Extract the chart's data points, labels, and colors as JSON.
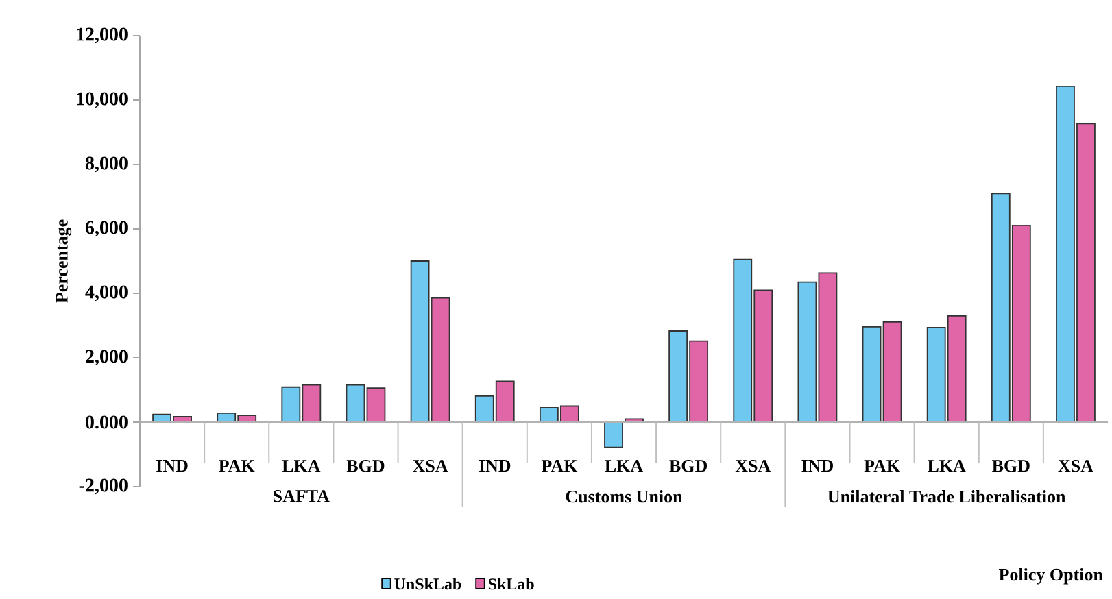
{
  "chart_data": {
    "type": "bar",
    "categories": [
      "IND",
      "PAK",
      "LKA",
      "BGD",
      "XSA",
      "IND",
      "PAK",
      "LKA",
      "BGD",
      "XSA",
      "IND",
      "PAK",
      "LKA",
      "BGD",
      "XSA"
    ],
    "series": [
      {
        "name": "UnSkLab",
        "color": "#6ec8ef",
        "values": [
          240,
          280,
          1090,
          1160,
          5000,
          810,
          450,
          -780,
          2830,
          5050,
          4350,
          2960,
          2940,
          7100,
          10430
        ]
      },
      {
        "name": "SkLab",
        "color": "#e066a8",
        "values": [
          170,
          210,
          1160,
          1060,
          3860,
          1270,
          500,
          100,
          2520,
          4100,
          4630,
          3110,
          3300,
          6110,
          9270
        ]
      }
    ],
    "ylabel": "Percentage",
    "xlabel": "Policy Option",
    "annotations": [
      "SAFTA",
      "Customs Union",
      "Unilateral Trade Liberalisation"
    ],
    "ylim": [
      -2000,
      12000
    ],
    "yticks": [
      {
        "value": -2000,
        "label": "-2,000"
      },
      {
        "value": 0,
        "label": "0.000"
      },
      {
        "value": 2000,
        "label": "2,000"
      },
      {
        "value": 4000,
        "label": "4,000"
      },
      {
        "value": 6000,
        "label": "6,000"
      },
      {
        "value": 8000,
        "label": "8,000"
      },
      {
        "value": 10000,
        "label": "10,000"
      },
      {
        "value": 12000,
        "label": "12,000"
      }
    ],
    "legend": "bottom"
  }
}
